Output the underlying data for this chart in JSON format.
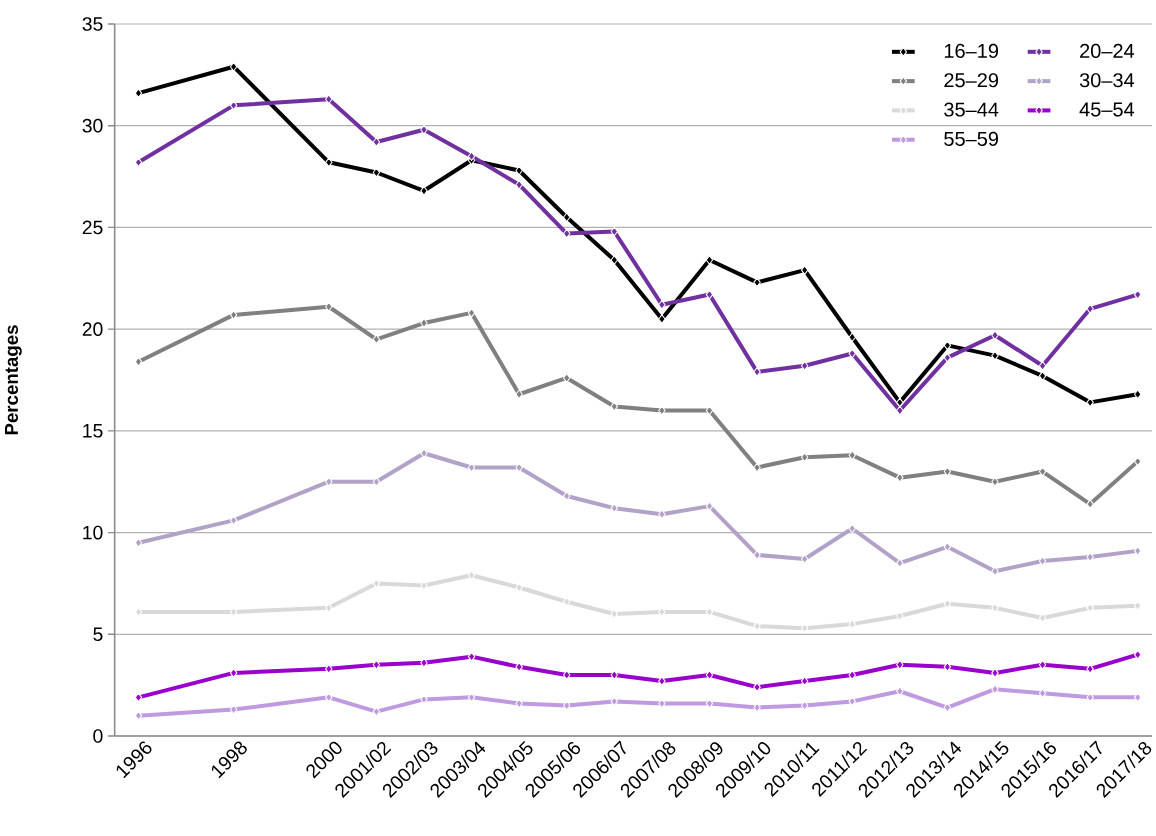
{
  "chart_data": {
    "type": "line",
    "ylabel": "Percentages",
    "x": [
      1996,
      1998,
      2000,
      2001,
      2002,
      2003,
      2004,
      2005,
      2006,
      2007,
      2008,
      2009,
      2010,
      2011,
      2012,
      2013,
      2014,
      2015,
      2016,
      2017
    ],
    "xlim": [
      1995.5,
      2017.3
    ],
    "xticks": [
      1996,
      1998,
      2000,
      {
        "value": 2001,
        "label": "2001/02"
      },
      {
        "value": 2002,
        "label": "2002/03"
      },
      {
        "value": 2003,
        "label": "2003/04"
      },
      {
        "value": 2004,
        "label": "2004/05"
      },
      {
        "value": 2005,
        "label": "2005/06"
      },
      {
        "value": 2006,
        "label": "2006/07"
      },
      {
        "value": 2007,
        "label": "2007/08"
      },
      {
        "value": 2008,
        "label": "2008/09"
      },
      {
        "value": 2009,
        "label": "2009/10"
      },
      {
        "value": 2010,
        "label": "2010/11"
      },
      {
        "value": 2011,
        "label": "2011/12"
      },
      {
        "value": 2012,
        "label": "2012/13"
      },
      {
        "value": 2013,
        "label": "2013/14"
      },
      {
        "value": 2014,
        "label": "2014/15"
      },
      {
        "value": 2015,
        "label": "2015/16"
      },
      {
        "value": 2016,
        "label": "2016/17"
      },
      {
        "value": 2017,
        "label": "2017/18"
      }
    ],
    "ylim": [
      0,
      35
    ],
    "yticks": [
      0,
      5,
      10,
      15,
      20,
      25,
      30,
      35
    ],
    "grid": "y",
    "legend": "top right",
    "marker": "diamond",
    "line_style": "solid",
    "series": [
      {
        "name": "16–19",
        "color": "#000000",
        "values": [
          31.6,
          32.9,
          28.2,
          27.7,
          26.8,
          28.3,
          27.8,
          25.5,
          23.4,
          20.5,
          23.4,
          22.3,
          22.9,
          19.6,
          16.4,
          19.2,
          18.7,
          17.7,
          16.4,
          16.8
        ]
      },
      {
        "name": "20–24",
        "color": "#7030a0",
        "values": [
          28.2,
          31.0,
          31.3,
          29.2,
          29.8,
          28.5,
          27.1,
          24.7,
          24.8,
          21.2,
          21.7,
          17.9,
          18.2,
          18.8,
          16.0,
          18.6,
          19.7,
          18.2,
          21.0,
          21.7
        ]
      },
      {
        "name": "25–29",
        "color": "#808080",
        "values": [
          18.4,
          20.7,
          21.1,
          19.5,
          20.3,
          20.8,
          16.8,
          17.6,
          16.2,
          16.0,
          16.0,
          13.2,
          13.7,
          13.8,
          12.7,
          13.0,
          12.5,
          13.0,
          11.4,
          13.5
        ]
      },
      {
        "name": "30–34",
        "color": "#b3a2c7",
        "values": [
          9.5,
          10.6,
          12.5,
          12.5,
          13.9,
          13.2,
          13.2,
          11.8,
          11.2,
          10.9,
          11.3,
          8.9,
          8.7,
          10.2,
          8.5,
          9.3,
          8.1,
          8.6,
          8.8,
          9.1
        ]
      },
      {
        "name": "35–44",
        "color": "#d9d9d9",
        "values": [
          6.1,
          6.1,
          6.3,
          7.5,
          7.4,
          7.9,
          7.3,
          6.6,
          6.0,
          6.1,
          6.1,
          5.4,
          5.3,
          5.5,
          5.9,
          6.5,
          6.3,
          5.8,
          6.3,
          6.4
        ]
      },
      {
        "name": "45–54",
        "color": "#9900cc",
        "values": [
          1.9,
          3.1,
          3.3,
          3.5,
          3.6,
          3.9,
          3.4,
          3.0,
          3.0,
          2.7,
          3.0,
          2.4,
          2.7,
          3.0,
          3.5,
          3.4,
          3.1,
          3.5,
          3.3,
          4.0
        ]
      },
      {
        "name": "55–59",
        "color": "#bf9ae0",
        "values": [
          1.0,
          1.3,
          1.9,
          1.2,
          1.8,
          1.9,
          1.6,
          1.5,
          1.7,
          1.6,
          1.6,
          1.4,
          1.5,
          1.7,
          2.2,
          1.4,
          2.3,
          2.1,
          1.9,
          1.9
        ]
      }
    ]
  }
}
